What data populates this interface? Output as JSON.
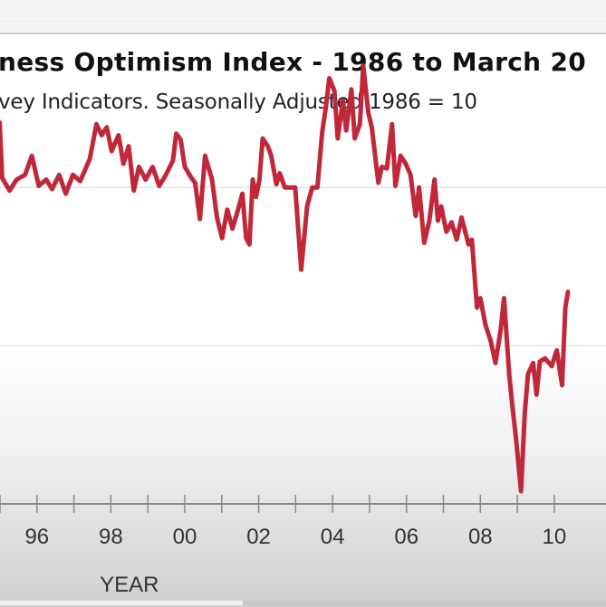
{
  "chart_data": {
    "type": "line",
    "title": "ness Optimism Index - 1986 to March 20",
    "subtitle": "vey Indicators. Seasonally Adjusted 1986 = 10",
    "xlabel": "YEAR",
    "ylabel": "",
    "x_tick_labels": [
      "96",
      "98",
      "00",
      "02",
      "04",
      "06",
      "08",
      "10"
    ],
    "x_tick_values": [
      1996,
      1998,
      2000,
      2002,
      2004,
      2006,
      2008,
      2010
    ],
    "x_minor_ticks": [
      1995,
      1996,
      1997,
      1998,
      1999,
      2000,
      2001,
      2002,
      2003,
      2004,
      2005,
      2006,
      2007,
      2008,
      2009,
      2010
    ],
    "xlim": [
      1995.0,
      2011.4
    ],
    "ylim": [
      80,
      104.7
    ],
    "gridlines_y": [
      100,
      90
    ],
    "grid": true,
    "legend": "none",
    "series": [
      {
        "name": "Optimism Index",
        "color": "#c0283a",
        "points": [
          [
            1994.99,
            104.1
          ],
          [
            1995.06,
            100.6
          ],
          [
            1995.26,
            99.8
          ],
          [
            1995.45,
            100.5
          ],
          [
            1995.68,
            100.8
          ],
          [
            1995.86,
            102.0
          ],
          [
            1996.05,
            100.1
          ],
          [
            1996.25,
            100.5
          ],
          [
            1996.41,
            99.9
          ],
          [
            1996.6,
            100.8
          ],
          [
            1996.78,
            99.6
          ],
          [
            1996.97,
            100.8
          ],
          [
            1997.17,
            100.4
          ],
          [
            1997.43,
            101.8
          ],
          [
            1997.61,
            104.0
          ],
          [
            1997.75,
            103.3
          ],
          [
            1997.89,
            103.8
          ],
          [
            1998.02,
            102.3
          ],
          [
            1998.21,
            103.3
          ],
          [
            1998.34,
            101.5
          ],
          [
            1998.48,
            102.6
          ],
          [
            1998.62,
            99.8
          ],
          [
            1998.76,
            101.3
          ],
          [
            1998.94,
            100.5
          ],
          [
            1999.13,
            101.3
          ],
          [
            1999.31,
            100.1
          ],
          [
            1999.49,
            100.8
          ],
          [
            1999.68,
            101.7
          ],
          [
            1999.77,
            103.4
          ],
          [
            1999.89,
            103.0
          ],
          [
            2000.0,
            101.3
          ],
          [
            2000.18,
            100.6
          ],
          [
            2000.28,
            100.3
          ],
          [
            2000.41,
            98.0
          ],
          [
            2000.55,
            102.0
          ],
          [
            2000.74,
            100.5
          ],
          [
            2000.87,
            98.1
          ],
          [
            2001.01,
            96.8
          ],
          [
            2001.15,
            98.6
          ],
          [
            2001.29,
            97.4
          ],
          [
            2001.43,
            98.5
          ],
          [
            2001.56,
            99.6
          ],
          [
            2001.66,
            96.8
          ],
          [
            2001.75,
            96.4
          ],
          [
            2001.84,
            100.5
          ],
          [
            2001.93,
            99.4
          ],
          [
            2002.02,
            100.5
          ],
          [
            2002.11,
            103.1
          ],
          [
            2002.25,
            102.6
          ],
          [
            2002.34,
            102.0
          ],
          [
            2002.48,
            100.2
          ],
          [
            2002.57,
            100.9
          ],
          [
            2002.71,
            100.0
          ],
          [
            2002.85,
            100.0
          ],
          [
            2002.99,
            100.0
          ],
          [
            2003.15,
            94.8
          ],
          [
            2003.31,
            98.8
          ],
          [
            2003.45,
            100.0
          ],
          [
            2003.59,
            100.0
          ],
          [
            2003.72,
            103.5
          ],
          [
            2003.82,
            105.1
          ],
          [
            2003.91,
            106.9
          ],
          [
            2004.05,
            106.1
          ],
          [
            2004.14,
            103.1
          ],
          [
            2004.28,
            105.5
          ],
          [
            2004.37,
            103.6
          ],
          [
            2004.51,
            106.2
          ],
          [
            2004.6,
            103.1
          ],
          [
            2004.74,
            104.0
          ],
          [
            2004.83,
            107.7
          ],
          [
            2004.97,
            104.7
          ],
          [
            2005.06,
            103.8
          ],
          [
            2005.24,
            100.3
          ],
          [
            2005.33,
            101.3
          ],
          [
            2005.47,
            101.2
          ],
          [
            2005.61,
            104.0
          ],
          [
            2005.7,
            100.1
          ],
          [
            2005.84,
            102.0
          ],
          [
            2005.98,
            101.5
          ],
          [
            2006.11,
            100.8
          ],
          [
            2006.25,
            98.2
          ],
          [
            2006.34,
            100.0
          ],
          [
            2006.48,
            96.5
          ],
          [
            2006.62,
            97.9
          ],
          [
            2006.76,
            100.5
          ],
          [
            2006.85,
            97.9
          ],
          [
            2006.94,
            98.8
          ],
          [
            2007.08,
            97.2
          ],
          [
            2007.22,
            97.8
          ],
          [
            2007.36,
            96.7
          ],
          [
            2007.49,
            98.1
          ],
          [
            2007.68,
            96.4
          ],
          [
            2007.77,
            96.7
          ],
          [
            2007.91,
            92.4
          ],
          [
            2008.0,
            93.0
          ],
          [
            2008.14,
            91.3
          ],
          [
            2008.28,
            90.3
          ],
          [
            2008.41,
            88.9
          ],
          [
            2008.55,
            91.0
          ],
          [
            2008.64,
            93.0
          ],
          [
            2008.78,
            88.2
          ],
          [
            2008.87,
            86.1
          ],
          [
            2008.97,
            84.0
          ],
          [
            2009.1,
            80.8
          ],
          [
            2009.2,
            85.7
          ],
          [
            2009.29,
            88.2
          ],
          [
            2009.43,
            88.9
          ],
          [
            2009.52,
            86.9
          ],
          [
            2009.61,
            89.0
          ],
          [
            2009.75,
            89.2
          ],
          [
            2009.93,
            88.7
          ],
          [
            2010.07,
            89.7
          ],
          [
            2010.21,
            87.5
          ],
          [
            2010.3,
            92.4
          ],
          [
            2010.37,
            93.4
          ]
        ]
      }
    ]
  }
}
